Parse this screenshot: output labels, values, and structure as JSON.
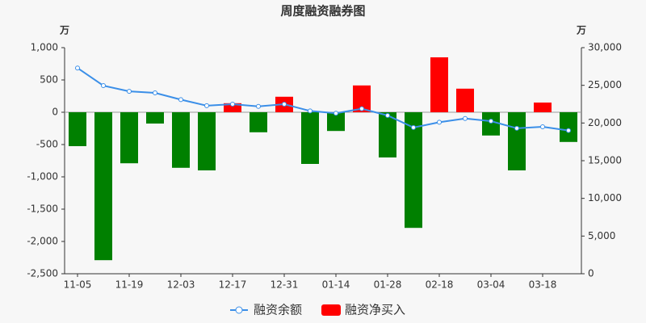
{
  "chart_data": {
    "type": "bar",
    "title": "周度融资融券图",
    "y_unit": "万",
    "y2_unit": "万",
    "categories": [
      "11-05",
      null,
      "11-19",
      null,
      "12-03",
      null,
      "12-17",
      null,
      "12-31",
      null,
      "01-14",
      null,
      "01-28",
      null,
      "02-18",
      null,
      "03-04",
      null,
      "03-18",
      null
    ],
    "series": [
      {
        "name": "融资余额",
        "type": "line",
        "axis": "y2",
        "color": "#3b8fe8",
        "values": [
          27300,
          24960,
          24200,
          24000,
          23100,
          22300,
          22500,
          22200,
          22500,
          21600,
          21300,
          21900,
          21000,
          19400,
          20100,
          20600,
          20250,
          19300,
          19500,
          19000
        ]
      },
      {
        "name": "融资净买入",
        "type": "bar",
        "color": "#ff0000",
        "negative_color": "#008000",
        "values": [
          -525,
          -2290,
          -790,
          -175,
          -860,
          -900,
          140,
          -310,
          240,
          -800,
          -290,
          415,
          -700,
          -1790,
          850,
          365,
          -360,
          -900,
          150,
          -460
        ]
      }
    ],
    "ylim": [
      -2500,
      1000
    ],
    "yticks": [
      {
        "value": -2500,
        "label": "-2,500"
      },
      {
        "value": -2000,
        "label": "-2,000"
      },
      {
        "value": -1500,
        "label": "-1,500"
      },
      {
        "value": -1000,
        "label": "-1,000"
      },
      -500,
      0,
      500,
      {
        "value": 1000,
        "label": "1,000"
      }
    ],
    "y2lim": [
      0,
      30000
    ],
    "y2ticks": [
      0,
      {
        "value": 5000,
        "label": "5,000"
      },
      {
        "value": 10000,
        "label": "10,000"
      },
      {
        "value": 15000,
        "label": "15,000"
      },
      {
        "value": 20000,
        "label": "20,000"
      },
      {
        "value": 25000,
        "label": "25,000"
      },
      {
        "value": 30000,
        "label": "30,000"
      }
    ]
  }
}
